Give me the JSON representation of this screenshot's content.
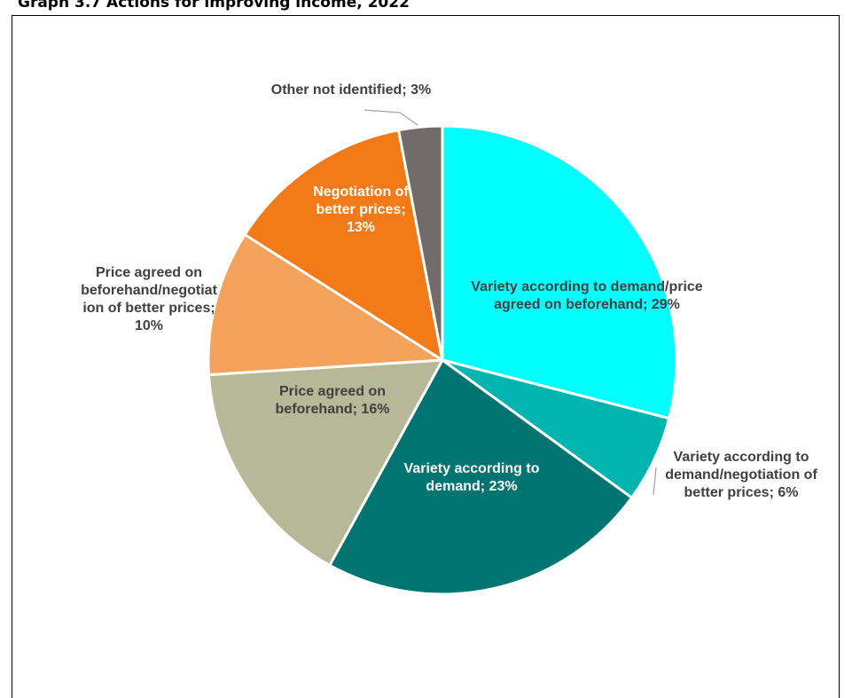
{
  "page": {
    "title": "Graph 3.7 Actions for improving income, 2022"
  },
  "chart_data": {
    "type": "pie",
    "title": "Graph 3.7 Actions for improving income, 2022",
    "slices": [
      {
        "name": "Variety according to demand/price agreed on beforehand",
        "value": 29,
        "label": "Variety according to demand/price agreed on beforehand; 29%",
        "color": "#00ffff",
        "text_color": "#404040"
      },
      {
        "name": "Variety according to demand/negotiation of better prices",
        "value": 6,
        "label": "Variety according to demand/negotiation of better prices; 6%",
        "color": "#00b5b0",
        "text_color": "#404040"
      },
      {
        "name": "Variety according to demand",
        "value": 23,
        "label": "Variety according to demand; 23%",
        "color": "#007470",
        "text_color": "#ffffff"
      },
      {
        "name": "Price agreed on beforehand",
        "value": 16,
        "label": "Price agreed on beforehand; 16%",
        "color": "#b5b997",
        "text_color": "#404040"
      },
      {
        "name": "Price agreed on beforehand/negotiation of better prices",
        "value": 10,
        "label": "Price agreed on beforehand/negotiation of better prices; 10%",
        "color": "#f5a35c",
        "text_color": "#404040"
      },
      {
        "name": "Negotiation of better prices",
        "value": 13,
        "label": "Negotiation of better prices; 13%",
        "color": "#f37a17",
        "text_color": "#ffffff"
      },
      {
        "name": "Other not identified",
        "value": 3,
        "label": "Other not identified; 3%",
        "color": "#736b6a",
        "text_color": "#404040"
      }
    ],
    "label_lines": {
      "0": [
        "Variety according to demand/price",
        "agreed on beforehand; 29%"
      ],
      "1": [
        "Variety according to",
        "demand/negotiation of",
        "better prices; 6%"
      ],
      "2": [
        "Variety according to",
        "demand; 23%"
      ],
      "3": [
        "Price agreed on",
        "beforehand; 16%"
      ],
      "4": [
        "Price agreed on",
        "beforehand/negotiat",
        "ion of better prices;",
        "10%"
      ],
      "5": [
        "Negotiation of",
        "better prices;",
        "13%"
      ],
      "6": [
        "Other not identified; 3%"
      ]
    }
  }
}
